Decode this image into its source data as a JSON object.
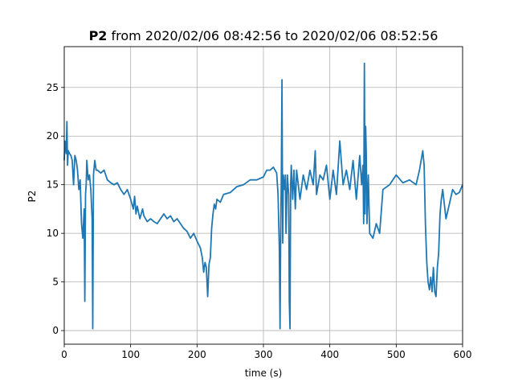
{
  "chart_data": {
    "type": "line",
    "title_bold": "P2",
    "title_rest": " from 2020/02/06 08:42:56 to 2020/02/06 08:52:56",
    "xlabel": "time (s)",
    "ylabel": "P2",
    "xlim": [
      0,
      600
    ],
    "ylim": [
      -1.4,
      29.2
    ],
    "xticks": [
      0,
      100,
      200,
      300,
      400,
      500,
      600
    ],
    "yticks": [
      0,
      5,
      10,
      15,
      20,
      25
    ],
    "grid": true,
    "line_color": "#1f77b4",
    "series": [
      {
        "x": [
          0,
          1,
          2,
          3,
          4,
          5,
          6,
          8,
          10,
          12,
          14,
          16,
          18,
          20,
          22,
          24,
          26,
          28,
          30,
          31,
          32,
          33,
          34,
          36,
          38,
          40,
          42,
          43,
          44,
          46,
          48,
          50,
          55,
          60,
          65,
          70,
          75,
          80,
          85,
          90,
          95,
          100,
          104,
          106,
          108,
          110,
          114,
          118,
          120,
          125,
          130,
          135,
          140,
          145,
          150,
          155,
          160,
          165,
          170,
          175,
          180,
          185,
          190,
          195,
          200,
          205,
          208,
          210,
          212,
          214,
          216,
          218,
          220,
          222,
          224,
          226,
          228,
          230,
          235,
          240,
          250,
          260,
          270,
          280,
          290,
          300,
          305,
          310,
          315,
          320,
          322,
          324,
          325,
          326,
          327,
          328,
          329,
          330,
          331,
          332,
          333,
          334,
          336,
          338,
          339,
          340,
          341,
          342,
          344,
          346,
          348,
          350,
          355,
          360,
          365,
          370,
          375,
          378,
          380,
          385,
          390,
          395,
          400,
          405,
          410,
          415,
          420,
          425,
          430,
          435,
          440,
          445,
          448,
          450,
          451,
          452,
          453,
          454,
          455,
          456,
          458,
          460,
          465,
          470,
          475,
          480,
          490,
          500,
          510,
          520,
          530,
          535,
          540,
          542,
          544,
          546,
          548,
          550,
          552,
          554,
          556,
          558,
          560,
          562,
          564,
          566,
          568,
          570,
          575,
          580,
          585,
          590,
          595,
          600
        ],
        "y": [
          17.5,
          19.5,
          18.8,
          18.2,
          21.5,
          17.0,
          18.5,
          18.2,
          18.0,
          17.5,
          15.0,
          18.0,
          17.5,
          16.5,
          14.5,
          15.5,
          11.0,
          9.5,
          12.5,
          3.0,
          14.0,
          15.0,
          17.5,
          15.5,
          16.0,
          14.5,
          11.5,
          0.2,
          16.0,
          17.5,
          16.5,
          16.5,
          16.2,
          16.5,
          15.5,
          15.2,
          15.0,
          15.2,
          14.5,
          14.0,
          14.5,
          13.5,
          12.5,
          13.8,
          12.0,
          12.8,
          11.5,
          12.5,
          11.8,
          11.2,
          11.5,
          11.2,
          11.0,
          11.5,
          12.0,
          11.5,
          11.8,
          11.2,
          11.5,
          11.0,
          10.5,
          10.2,
          9.5,
          10.0,
          9.2,
          8.5,
          7.5,
          6.0,
          7.0,
          6.5,
          3.5,
          6.8,
          7.5,
          10.5,
          12.0,
          13.0,
          12.5,
          13.5,
          13.2,
          14.0,
          14.2,
          14.8,
          15.0,
          15.5,
          15.5,
          15.8,
          16.5,
          16.5,
          16.8,
          16.2,
          14.0,
          8.5,
          0.2,
          10.0,
          16.0,
          25.8,
          9.0,
          16.0,
          15.0,
          14.5,
          16.0,
          10.0,
          16.0,
          14.0,
          3.0,
          0.2,
          15.0,
          17.0,
          13.5,
          16.5,
          12.5,
          16.5,
          13.5,
          16.0,
          14.5,
          16.5,
          15.0,
          18.5,
          14.0,
          16.0,
          15.5,
          17.0,
          13.5,
          16.5,
          14.0,
          19.5,
          15.0,
          16.5,
          14.5,
          17.5,
          13.5,
          18.0,
          15.0,
          17.0,
          11.0,
          27.5,
          12.0,
          21.0,
          18.0,
          11.0,
          16.0,
          10.0,
          9.5,
          11.0,
          10.0,
          14.5,
          15.0,
          16.0,
          15.2,
          15.5,
          15.0,
          16.5,
          18.5,
          17.0,
          11.0,
          7.0,
          5.0,
          4.2,
          5.5,
          4.0,
          6.5,
          4.0,
          3.5,
          6.5,
          8.0,
          12.0,
          13.5,
          14.5,
          11.5,
          13.0,
          14.5,
          14.0,
          14.2,
          15.0
        ]
      }
    ]
  }
}
